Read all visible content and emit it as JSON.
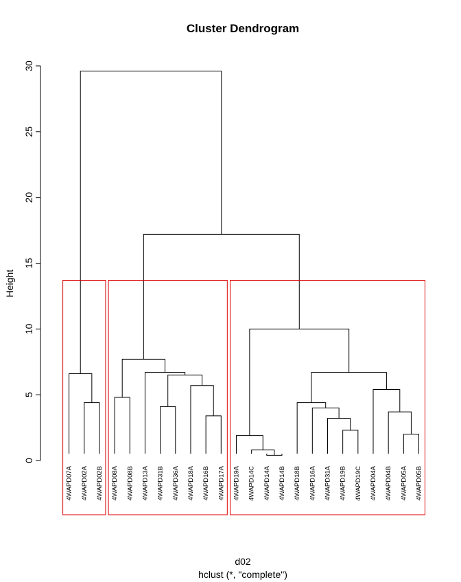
{
  "chart_data": {
    "type": "dendrogram",
    "title": "Cluster Dendrogram",
    "ylabel": "Height",
    "xlabel": "d02",
    "sublabel": "hclust (*, \"complete\")",
    "ylim": [
      0,
      30
    ],
    "yticks": [
      0,
      5,
      10,
      15,
      20,
      25,
      30
    ],
    "leaves": [
      "4WAPD07A",
      "4WAPD02A",
      "4WAPD02B",
      "4WAPD08A",
      "4WAPD08B",
      "4WAPD13A",
      "4WAPD31B",
      "4WAPD36A",
      "4WAPD18A",
      "4WAPD16B",
      "4WAPD17A",
      "4WAPD19A",
      "4WAPD14C",
      "4WAPD14A",
      "4WAPD14B",
      "4WAPD18B",
      "4WAPD16A",
      "4WAPD31A",
      "4WAPD19B",
      "4WAPD19C",
      "4WAPD04A",
      "4WAPD04B",
      "4WAPD05A",
      "4WAPD05B"
    ],
    "merges": [
      {
        "id": "c1",
        "left": "L1",
        "right": "L2",
        "height": 4.4
      },
      {
        "id": "c2",
        "left": "L0",
        "right": "c1",
        "height": 6.6
      },
      {
        "id": "c3",
        "left": "L3",
        "right": "L4",
        "height": 4.8
      },
      {
        "id": "c4",
        "left": "L9",
        "right": "L10",
        "height": 3.4
      },
      {
        "id": "c5",
        "left": "L8",
        "right": "c4",
        "height": 5.7
      },
      {
        "id": "c6",
        "left": "L6",
        "right": "L7",
        "height": 4.1
      },
      {
        "id": "c7",
        "left": "c6",
        "right": "c5",
        "height": 6.5
      },
      {
        "id": "c8",
        "left": "L5",
        "right": "c7",
        "height": 6.7
      },
      {
        "id": "c9",
        "left": "c3",
        "right": "c8",
        "height": 7.7
      },
      {
        "id": "c10",
        "left": "L13",
        "right": "L14",
        "height": 0.4
      },
      {
        "id": "c11",
        "left": "L12",
        "right": "c10",
        "height": 0.8
      },
      {
        "id": "c12",
        "left": "L11",
        "right": "c11",
        "height": 1.9
      },
      {
        "id": "c13",
        "left": "L18",
        "right": "L19",
        "height": 2.3
      },
      {
        "id": "c14",
        "left": "L17",
        "right": "c13",
        "height": 3.2
      },
      {
        "id": "c15",
        "left": "L16",
        "right": "c14",
        "height": 4.0
      },
      {
        "id": "c16",
        "left": "L15",
        "right": "c15",
        "height": 4.4
      },
      {
        "id": "c17",
        "left": "L22",
        "right": "L23",
        "height": 2.0
      },
      {
        "id": "c18",
        "left": "L21",
        "right": "c17",
        "height": 3.7
      },
      {
        "id": "c19",
        "left": "L20",
        "right": "c18",
        "height": 5.4
      },
      {
        "id": "c20",
        "left": "c16",
        "right": "c19",
        "height": 6.7
      },
      {
        "id": "c21",
        "left": "c12",
        "right": "c20",
        "height": 10.0
      },
      {
        "id": "c22",
        "left": "c9",
        "right": "c21",
        "height": 17.2
      },
      {
        "id": "c23",
        "left": "c2",
        "right": "c22",
        "height": 29.6
      }
    ],
    "cluster_boxes": [
      {
        "from": 0,
        "to": 2,
        "top": 13.7,
        "color": "#dd0000"
      },
      {
        "from": 3,
        "to": 10,
        "top": 13.7,
        "color": "#dd0000"
      },
      {
        "from": 11,
        "to": 23,
        "top": 13.7,
        "color": "#dd0000"
      }
    ]
  }
}
